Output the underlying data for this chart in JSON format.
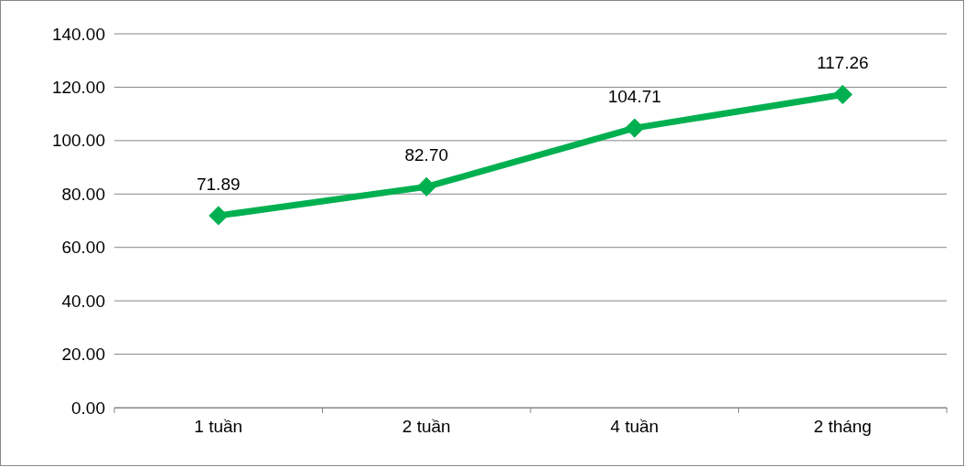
{
  "chart_data": {
    "type": "line",
    "categories": [
      "1 tuần",
      "2 tuần",
      "4 tuần",
      "2 tháng"
    ],
    "series": [
      {
        "color": "#00b050",
        "values": [
          71.89,
          82.7,
          104.71,
          117.26
        ],
        "value_labels": [
          "71.89",
          "82.70",
          "104.71",
          "117.26"
        ]
      }
    ],
    "ylim": [
      0,
      140
    ],
    "yticks": [
      {
        "value": 0,
        "label": "0.00"
      },
      {
        "value": 20,
        "label": "20.00"
      },
      {
        "value": 40,
        "label": "40.00"
      },
      {
        "value": 60,
        "label": "60.00"
      },
      {
        "value": 80,
        "label": "80.00"
      },
      {
        "value": 100,
        "label": "100.00"
      },
      {
        "value": 120,
        "label": "120.00"
      },
      {
        "value": 140,
        "label": "140.00"
      }
    ],
    "grid": "y",
    "marker": "diamond",
    "line_style": "solid"
  }
}
